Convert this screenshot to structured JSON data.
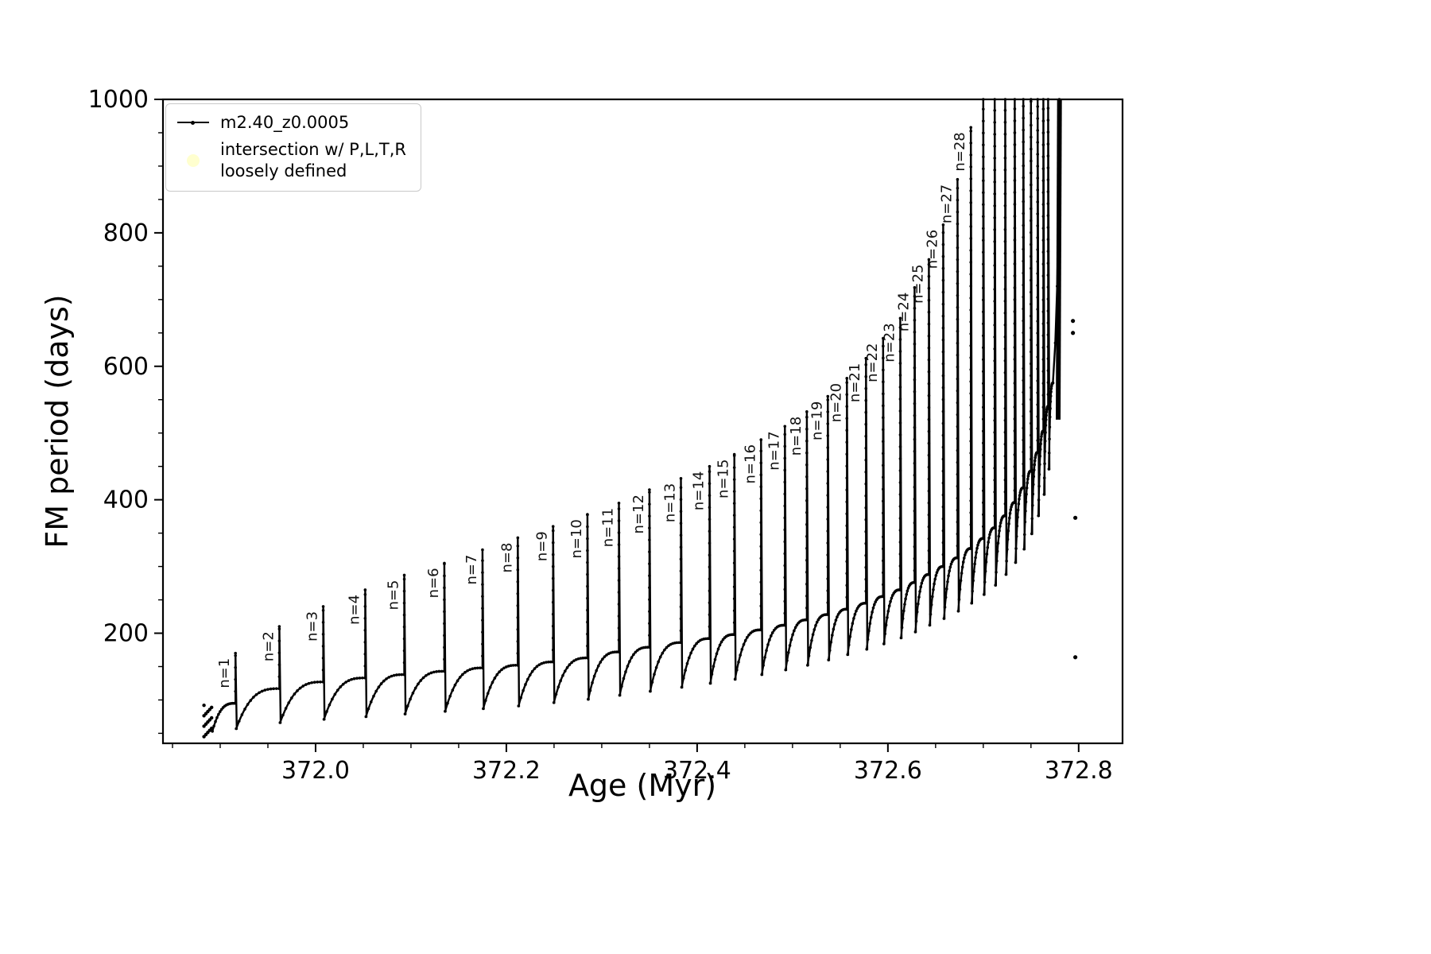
{
  "legend": {
    "series1_label": "m2.40_z0.0005",
    "series2_line1": "intersection w/ P,L,T,R",
    "series2_line2": "loosely defined",
    "series2_color": "#ffffcf",
    "series1_color": "#000000"
  },
  "chart_data": {
    "type": "line",
    "title": "",
    "xlabel": "Age (Myr)",
    "ylabel": "FM period (days)",
    "xlim": [
      371.84,
      372.846
    ],
    "ylim": [
      35,
      1000
    ],
    "xticks": {
      "values": [
        372.0,
        372.2,
        372.4,
        372.6,
        372.8
      ],
      "labels": [
        "372.0",
        "372.2",
        "372.4",
        "372.6",
        "372.8"
      ]
    },
    "yticks": {
      "values": [
        200,
        400,
        600,
        800,
        1000
      ],
      "labels": [
        "200",
        "400",
        "600",
        "800",
        "1000"
      ]
    },
    "x_minor_step": 0.05,
    "y_minor_step": 50,
    "grid": false,
    "legend_position": "upper left",
    "series_name": "m2.40_z0.0005",
    "series_color": "#000000",
    "start_cluster": {
      "age_range": [
        371.883,
        371.891
      ],
      "period_range": [
        45,
        92
      ]
    },
    "spike_columns": [
      "label",
      "age",
      "peak",
      "base_before",
      "min_after"
    ],
    "spikes": [
      [
        "n=1",
        371.916,
        170,
        95,
        57
      ],
      [
        "n=2",
        371.962,
        210,
        117,
        66
      ],
      [
        "n=3",
        372.008,
        240,
        127,
        71
      ],
      [
        "n=4",
        372.052,
        265,
        133,
        75
      ],
      [
        "n=5",
        372.093,
        287,
        138,
        79
      ],
      [
        "n=6",
        372.135,
        305,
        143,
        83
      ],
      [
        "n=7",
        372.175,
        325,
        148,
        87
      ],
      [
        "n=8",
        372.212,
        343,
        152,
        91
      ],
      [
        "n=9",
        372.249,
        360,
        157,
        96
      ],
      [
        "n=10",
        372.285,
        378,
        163,
        101
      ],
      [
        "n=11",
        372.318,
        395,
        172,
        107
      ],
      [
        "n=12",
        372.35,
        415,
        179,
        113
      ],
      [
        "n=13",
        372.383,
        432,
        186,
        119
      ],
      [
        "n=14",
        372.413,
        450,
        192,
        125
      ],
      [
        "n=15",
        372.439,
        468,
        198,
        131
      ],
      [
        "n=16",
        372.467,
        490,
        205,
        138
      ],
      [
        "n=17",
        372.492,
        510,
        212,
        145
      ],
      [
        "n=18",
        372.515,
        532,
        220,
        152
      ],
      [
        "n=19",
        372.537,
        555,
        228,
        160
      ],
      [
        "n=20",
        372.557,
        582,
        236,
        168
      ],
      [
        "n=21",
        372.577,
        612,
        245,
        176
      ],
      [
        "n=22",
        372.595,
        642,
        255,
        184
      ],
      [
        "n=23",
        372.613,
        672,
        265,
        193
      ],
      [
        "n=24",
        372.628,
        718,
        276,
        202
      ],
      [
        "n=25",
        372.643,
        760,
        288,
        212
      ],
      [
        "n=26",
        372.658,
        812,
        300,
        222
      ],
      [
        "n=27",
        372.673,
        880,
        313,
        233
      ],
      [
        "n=28",
        372.687,
        958,
        327,
        245
      ]
    ],
    "unlabeled_spike_columns": [
      "age",
      "peak",
      "base_before",
      "min_after"
    ],
    "unlabeled_spikes": [
      [
        372.7,
        1020,
        342,
        258
      ],
      [
        372.712,
        1020,
        358,
        272
      ],
      [
        372.723,
        1020,
        376,
        288
      ],
      [
        372.733,
        1020,
        396,
        306
      ],
      [
        372.742,
        1020,
        418,
        326
      ],
      [
        372.75,
        1020,
        443,
        349
      ],
      [
        372.757,
        1020,
        471,
        376
      ],
      [
        372.763,
        1020,
        503,
        408
      ],
      [
        372.768,
        1020,
        540,
        446
      ]
    ],
    "final_rise": [
      [
        372.773,
        575
      ],
      [
        372.7755,
        635
      ],
      [
        372.7775,
        720
      ],
      [
        372.7788,
        840
      ],
      [
        372.7797,
        1000
      ]
    ],
    "outlier_points": [
      [
        372.794,
        668
      ],
      [
        372.794,
        650
      ],
      [
        372.7965,
        373
      ],
      [
        372.7965,
        164
      ]
    ]
  }
}
